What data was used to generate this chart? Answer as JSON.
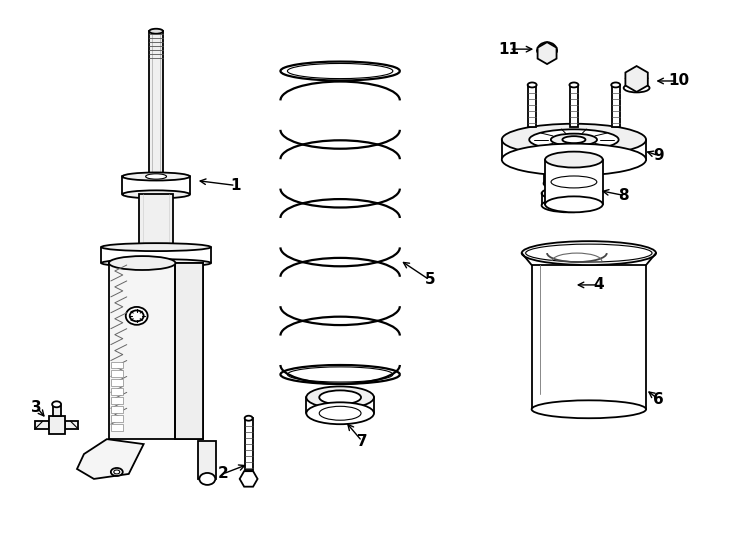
{
  "background_color": "#ffffff",
  "line_color": "#000000",
  "line_width": 1.3,
  "fig_width": 7.34,
  "fig_height": 5.4,
  "dpi": 100
}
